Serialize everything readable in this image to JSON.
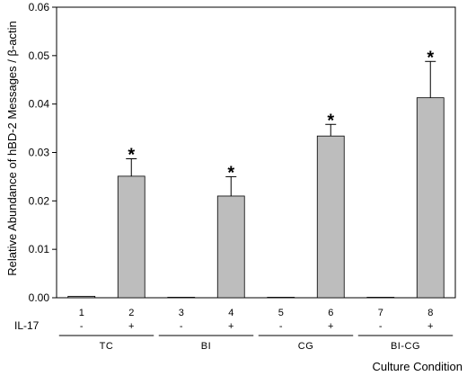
{
  "chart_data": {
    "type": "bar",
    "ylabel": "Relative Abundance of hBD-2 Messages / β-actin",
    "xlabel": "Culture Condition",
    "ylim": [
      0,
      0.06
    ],
    "yticks": [
      "0.00",
      "0.01",
      "0.02",
      "0.03",
      "0.04",
      "0.05",
      "0.06"
    ],
    "categories": [
      "1",
      "2",
      "3",
      "4",
      "5",
      "6",
      "7",
      "8"
    ],
    "values": [
      0.0003,
      0.0251,
      0.0001,
      0.021,
      0.0001,
      0.0334,
      0.0001,
      0.0413
    ],
    "errors": [
      0,
      0.0036,
      0,
      0.004,
      0,
      0.0024,
      0,
      0.0075
    ],
    "significant": [
      "",
      "*",
      "",
      "*",
      "",
      "*",
      "",
      "*"
    ],
    "il17_label": "IL-17",
    "il17": [
      "-",
      "+",
      "-",
      "+",
      "-",
      "+",
      "-",
      "+"
    ],
    "groups": [
      {
        "label": "TC",
        "from": 0,
        "to": 1
      },
      {
        "label": "BI",
        "from": 2,
        "to": 3
      },
      {
        "label": "CG",
        "from": 4,
        "to": 5
      },
      {
        "label": "BI-CG",
        "from": 6,
        "to": 7
      }
    ],
    "bar_color": "#bdbdbd",
    "grid": false,
    "legend": "none"
  }
}
